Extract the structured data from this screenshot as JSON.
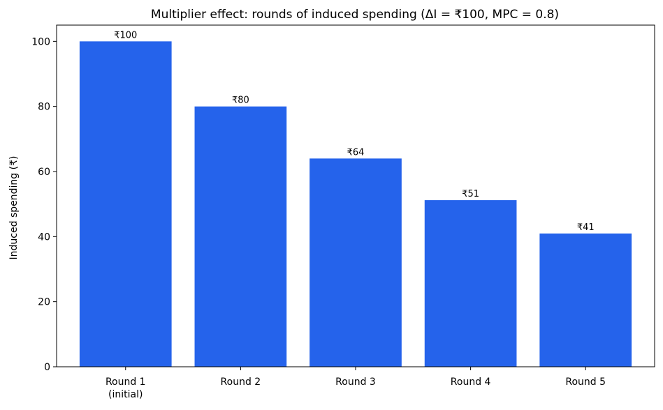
{
  "chart_data": {
    "type": "bar",
    "title": "Multiplier effect: rounds of induced spending (ΔI = ₹100, MPC = 0.8)",
    "xlabel": "",
    "ylabel": "Induced spending (₹)",
    "categories": [
      [
        "Round 1",
        "(initial)"
      ],
      [
        "Round 2"
      ],
      [
        "Round 3"
      ],
      [
        "Round 4"
      ],
      [
        "Round 5"
      ]
    ],
    "values": [
      100,
      80,
      64,
      51.2,
      40.96
    ],
    "value_labels": [
      "₹100",
      "₹80",
      "₹64",
      "₹51",
      "₹41"
    ],
    "ylim": [
      0,
      105
    ],
    "yticks": [
      0,
      20,
      40,
      60,
      80,
      100
    ],
    "grid": false,
    "legend": "none",
    "bar_color": "#2563eb"
  }
}
